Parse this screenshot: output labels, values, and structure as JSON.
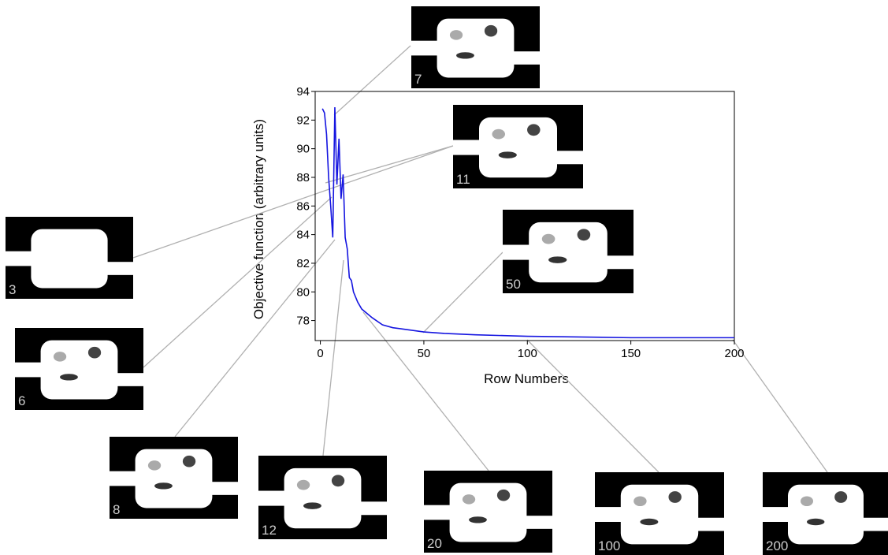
{
  "chart_data": {
    "type": "line",
    "x_label": "Row Numbers",
    "y_label": "Objective function (arbitrary units)",
    "xlim": [
      -2.5,
      200
    ],
    "ylim": [
      76.6,
      94
    ],
    "xticks": [
      0,
      50,
      100,
      150,
      200
    ],
    "yticks": [
      78,
      80,
      82,
      84,
      86,
      88,
      90,
      92,
      94
    ],
    "series": [
      {
        "color": "#1515e0",
        "x": [
          1,
          2,
          3,
          4,
          5,
          6,
          7,
          8,
          9,
          10,
          11,
          12,
          13,
          14,
          15,
          16,
          18,
          20,
          25,
          30,
          35,
          40,
          50,
          60,
          75,
          100,
          150,
          200
        ],
        "values": [
          92.8,
          92.5,
          91,
          88,
          86,
          83.8,
          92.9,
          87.5,
          90.7,
          86.5,
          88.2,
          83.8,
          83,
          81,
          80.8,
          80,
          79.3,
          78.8,
          78.2,
          77.7,
          77.5,
          77.4,
          77.2,
          77.1,
          77,
          76.9,
          76.8,
          76.8
        ]
      }
    ],
    "thumbnails": [
      "7",
      "11",
      "3",
      "6",
      "8",
      "12",
      "20",
      "50",
      "100",
      "200"
    ]
  }
}
